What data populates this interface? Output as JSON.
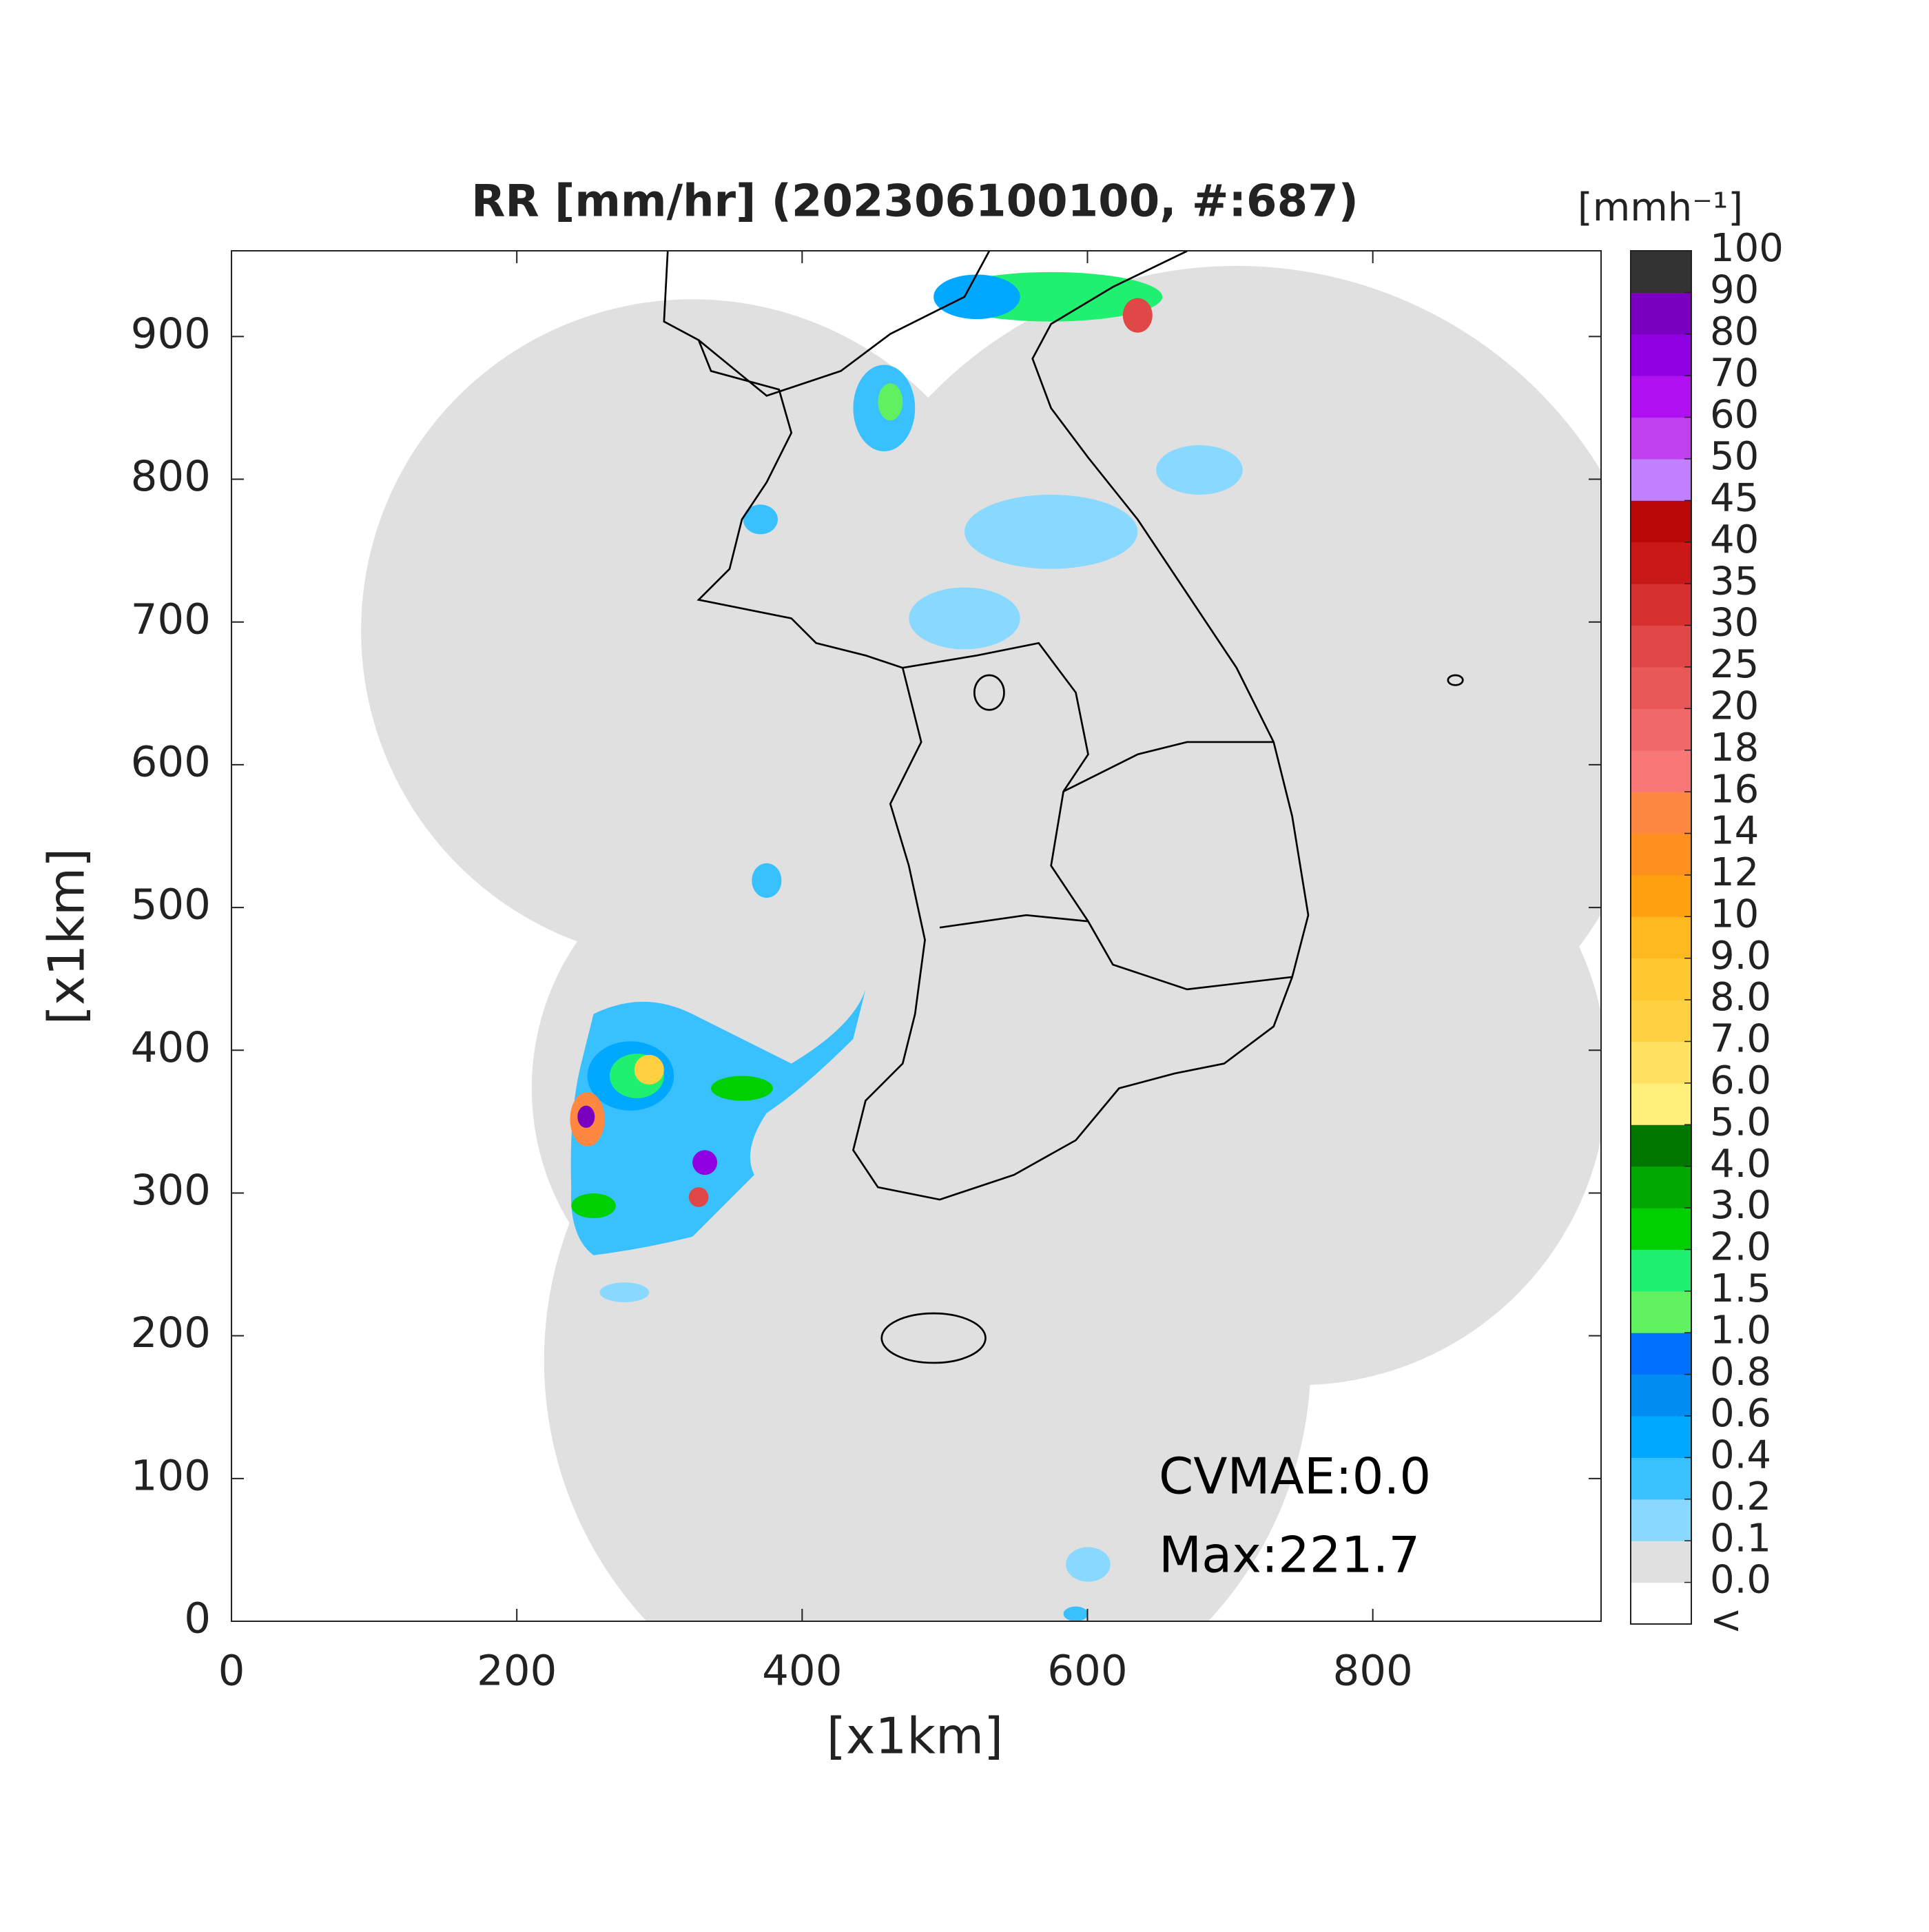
{
  "chart_data": {
    "type": "map",
    "title": "RR [mm/hr] (202306100100, #:687)",
    "xlabel": "[x1km]",
    "ylabel": "[x1km]",
    "xlim": [
      0,
      960
    ],
    "ylim": [
      0,
      960
    ],
    "xticks": [
      0,
      200,
      400,
      600,
      800
    ],
    "yticks": [
      0,
      100,
      200,
      300,
      400,
      500,
      600,
      700,
      800,
      900
    ],
    "annotations": [
      "CVMAE:0.0",
      "Max:221.7"
    ],
    "colorbar": {
      "label": "[mmh⁻¹]",
      "under_label": "<",
      "under_color": "#ffffff",
      "ticks": [
        {
          "value": 0,
          "label": "0.0"
        },
        0.1,
        0.2,
        0.4,
        0.6,
        0.8,
        {
          "value": 1,
          "label": "1.0"
        },
        1.5,
        {
          "value": 2,
          "label": "2.0"
        },
        {
          "value": 3,
          "label": "3.0"
        },
        {
          "value": 4,
          "label": "4.0"
        },
        {
          "value": 5,
          "label": "5.0"
        },
        {
          "value": 6,
          "label": "6.0"
        },
        {
          "value": 7,
          "label": "7.0"
        },
        {
          "value": 8,
          "label": "8.0"
        },
        {
          "value": 9,
          "label": "9.0"
        },
        10,
        12,
        14,
        16,
        18,
        20,
        25,
        30,
        35,
        40,
        45,
        50,
        60,
        70,
        80,
        90,
        100
      ],
      "colors": [
        "#e0e0e0",
        "#88d8ff",
        "#38c0ff",
        "#00a8ff",
        "#008cf0",
        "#0070ff",
        "#60f060",
        "#20f070",
        "#00d000",
        "#00a800",
        "#007800",
        "#fff07a",
        "#ffe060",
        "#ffd040",
        "#ffc830",
        "#ffb820",
        "#ffa010",
        "#ff9020",
        "#ff8840",
        "#f87878",
        "#f06868",
        "#e85858",
        "#e04848",
        "#d63030",
        "#c81818",
        "#b80808",
        "#c080ff",
        "#c040f0",
        "#b010f0",
        "#9000e0",
        "#7a00c0",
        "#333333"
      ]
    }
  }
}
